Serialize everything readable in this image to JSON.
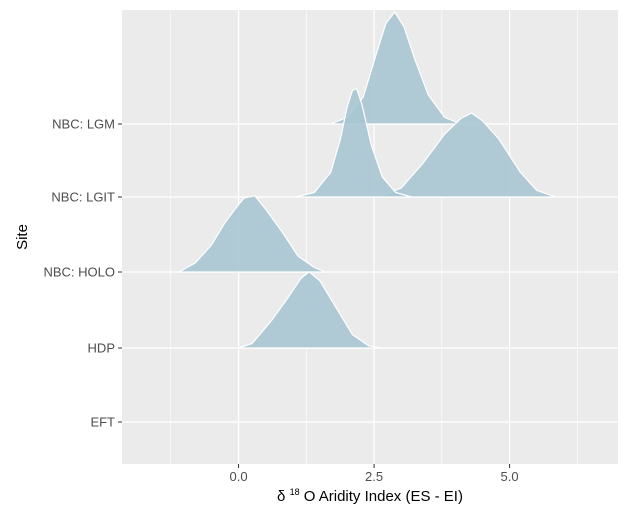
{
  "chart_data": {
    "type": "ridgeline",
    "xlabel": {
      "symbol": "δ",
      "superscript": "18",
      "text": "O Aridity Index (ES - EI)"
    },
    "ylabel": "Site",
    "xlim": [
      -2.15,
      7.0
    ],
    "x_ticks": [
      0.0,
      2.5,
      5.0
    ],
    "x_tick_labels": [
      "0.0",
      "2.5",
      "5.0"
    ],
    "categories": [
      "EFT",
      "HDP",
      "NBC: HOLO",
      "NBC: LGIT",
      "NBC: LGM"
    ],
    "grid": true,
    "legend": "none",
    "fill_color": "#a9c7d3",
    "panel_color": "#ebebeb",
    "grid_color": "#ffffff",
    "series": [
      {
        "row": "NBC: LGM",
        "density": [
          [
            1.7,
            0
          ],
          [
            2.0,
            0.06
          ],
          [
            2.3,
            0.24
          ],
          [
            2.55,
            0.64
          ],
          [
            2.72,
            0.9
          ],
          [
            2.88,
            1.0
          ],
          [
            3.05,
            0.87
          ],
          [
            3.25,
            0.58
          ],
          [
            3.5,
            0.26
          ],
          [
            3.8,
            0.06
          ],
          [
            4.1,
            0
          ]
        ]
      },
      {
        "row": "NBC: LGIT",
        "density": [
          [
            2.6,
            0
          ],
          [
            3.0,
            0.08
          ],
          [
            3.4,
            0.3
          ],
          [
            3.8,
            0.56
          ],
          [
            4.1,
            0.7
          ],
          [
            4.3,
            0.75
          ],
          [
            4.5,
            0.68
          ],
          [
            4.8,
            0.52
          ],
          [
            5.2,
            0.22
          ],
          [
            5.5,
            0.06
          ],
          [
            5.85,
            0
          ]
        ]
      },
      {
        "row": "NBC: LGIT",
        "density": [
          [
            1.05,
            0
          ],
          [
            1.4,
            0.04
          ],
          [
            1.7,
            0.22
          ],
          [
            1.88,
            0.52
          ],
          [
            2.0,
            0.8
          ],
          [
            2.1,
            0.95
          ],
          [
            2.18,
            0.97
          ],
          [
            2.28,
            0.82
          ],
          [
            2.45,
            0.46
          ],
          [
            2.65,
            0.18
          ],
          [
            2.9,
            0.04
          ],
          [
            3.2,
            0
          ]
        ]
      },
      {
        "row": "NBC: HOLO",
        "density": [
          [
            -1.1,
            0
          ],
          [
            -0.8,
            0.08
          ],
          [
            -0.5,
            0.24
          ],
          [
            -0.25,
            0.44
          ],
          [
            0.0,
            0.6
          ],
          [
            0.1,
            0.66
          ],
          [
            0.3,
            0.68
          ],
          [
            0.5,
            0.56
          ],
          [
            0.8,
            0.36
          ],
          [
            1.1,
            0.14
          ],
          [
            1.4,
            0.04
          ],
          [
            1.6,
            0
          ]
        ]
      },
      {
        "row": "HDP",
        "density": [
          [
            0.0,
            0
          ],
          [
            0.25,
            0.04
          ],
          [
            0.6,
            0.24
          ],
          [
            0.9,
            0.44
          ],
          [
            1.15,
            0.62
          ],
          [
            1.3,
            0.68
          ],
          [
            1.5,
            0.6
          ],
          [
            1.8,
            0.36
          ],
          [
            2.1,
            0.12
          ],
          [
            2.4,
            0.02
          ],
          [
            2.65,
            0
          ]
        ]
      }
    ]
  }
}
